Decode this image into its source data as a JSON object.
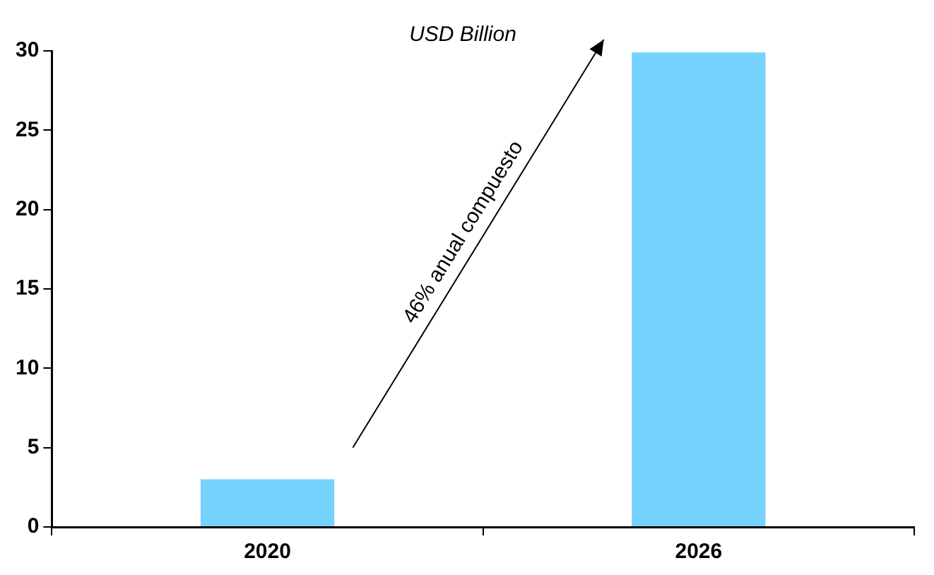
{
  "chart_data": {
    "type": "bar",
    "subtitle": "USD Billion",
    "categories": [
      "2020",
      "2026"
    ],
    "values": [
      3.0,
      29.9
    ],
    "color": "#75d3fe",
    "ylim": [
      0,
      30
    ],
    "yticks": [
      0,
      5,
      10,
      15,
      20,
      25,
      30
    ],
    "grid": false,
    "legend": false,
    "annotations": [
      "46% anual compuesto"
    ]
  }
}
